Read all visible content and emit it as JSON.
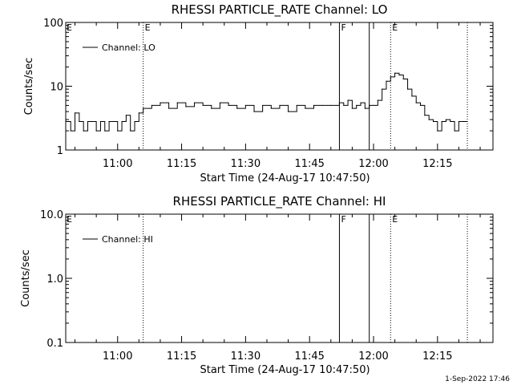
{
  "chart_data": [
    {
      "type": "line",
      "title": "RHESSI PARTICLE_RATE Channel: LO",
      "xlabel": "Start Time (24-Aug-17 10:47:50)",
      "ylabel": "Counts/sec",
      "y_scale": "log",
      "ylim": [
        1,
        100
      ],
      "ytick_labels": [
        "1",
        "10",
        "100"
      ],
      "xlim": [
        "10:47:50",
        "12:28:00"
      ],
      "xtick_labels": [
        "11:00",
        "11:15",
        "11:30",
        "11:45",
        "12:00",
        "12:15"
      ],
      "grid": false,
      "legend_position": "top-left",
      "legend": "Channel: LO",
      "markers": [
        {
          "time": "11:06",
          "style": "dotted",
          "label": "E"
        },
        {
          "time": "11:52",
          "style": "solid",
          "label": "F"
        },
        {
          "time": "11:59",
          "style": "solid",
          "label": ""
        },
        {
          "time": "12:04",
          "style": "dotted",
          "label": "E"
        },
        {
          "time": "12:22",
          "style": "dotted",
          "label": ""
        }
      ],
      "corner_label": "E",
      "series": [
        {
          "name": "Channel: LO",
          "x": [
            "10:48",
            "10:49",
            "10:50",
            "10:51",
            "10:52",
            "10:53",
            "10:54",
            "10:55",
            "10:56",
            "10:57",
            "10:58",
            "10:59",
            "11:00",
            "11:01",
            "11:02",
            "11:03",
            "11:04",
            "11:05",
            "11:06",
            "11:08",
            "11:10",
            "11:12",
            "11:14",
            "11:16",
            "11:18",
            "11:20",
            "11:22",
            "11:24",
            "11:26",
            "11:28",
            "11:30",
            "11:32",
            "11:34",
            "11:36",
            "11:38",
            "11:40",
            "11:42",
            "11:44",
            "11:46",
            "11:48",
            "11:50",
            "11:52",
            "11:53",
            "11:54",
            "11:55",
            "11:56",
            "11:57",
            "11:58",
            "11:59",
            "12:00",
            "12:01",
            "12:02",
            "12:03",
            "12:04",
            "12:05",
            "12:06",
            "12:07",
            "12:08",
            "12:09",
            "12:10",
            "12:11",
            "12:12",
            "12:13",
            "12:14",
            "12:15",
            "12:16",
            "12:17",
            "12:18",
            "12:19",
            "12:20",
            "12:22"
          ],
          "values": [
            2.8,
            2.0,
            3.8,
            2.8,
            2.0,
            2.8,
            2.8,
            2.0,
            2.8,
            2.0,
            2.8,
            2.8,
            2.0,
            2.8,
            3.5,
            2.0,
            2.8,
            3.8,
            4.5,
            5.0,
            5.5,
            4.5,
            5.5,
            4.8,
            5.5,
            5.0,
            4.5,
            5.5,
            5.0,
            4.5,
            5.0,
            4.0,
            5.0,
            4.5,
            5.0,
            4.0,
            5.0,
            4.5,
            5.0,
            5.0,
            5.0,
            5.5,
            5.0,
            6.0,
            4.5,
            5.0,
            5.5,
            4.5,
            5.0,
            5.0,
            6.0,
            9.0,
            12.0,
            14.0,
            16.0,
            15.0,
            13.0,
            9.0,
            7.0,
            5.5,
            5.0,
            3.5,
            3.0,
            2.8,
            2.0,
            2.8,
            3.0,
            2.8,
            2.0,
            2.8,
            2.8
          ]
        }
      ]
    },
    {
      "type": "line",
      "title": "RHESSI PARTICLE_RATE Channel: HI",
      "xlabel": "Start Time (24-Aug-17 10:47:50)",
      "ylabel": "Counts/sec",
      "y_scale": "log",
      "ylim": [
        0.1,
        10
      ],
      "ytick_labels": [
        "0.1",
        "1.0",
        "10.0"
      ],
      "xlim": [
        "10:47:50",
        "12:28:00"
      ],
      "xtick_labels": [
        "11:00",
        "11:15",
        "11:30",
        "11:45",
        "12:00",
        "12:15"
      ],
      "grid": false,
      "legend_position": "top-left",
      "legend": "Channel: HI",
      "markers": [
        {
          "time": "11:06",
          "style": "dotted",
          "label": ""
        },
        {
          "time": "11:52",
          "style": "solid",
          "label": "F"
        },
        {
          "time": "11:59",
          "style": "solid",
          "label": ""
        },
        {
          "time": "12:04",
          "style": "dotted",
          "label": "E"
        },
        {
          "time": "12:22",
          "style": "dotted",
          "label": ""
        }
      ],
      "corner_label": "E",
      "series": [
        {
          "name": "Channel: HI",
          "x": [],
          "values": []
        }
      ]
    }
  ],
  "timestamp": "1-Sep-2022 17:46"
}
